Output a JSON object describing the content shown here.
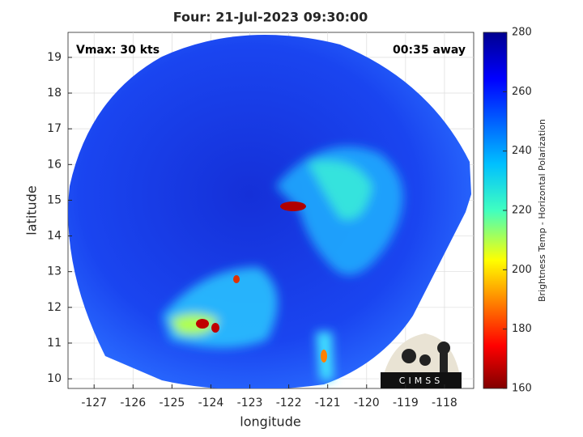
{
  "chart_data": {
    "type": "image",
    "title": "Four: 21-Jul-2023 09:30:00",
    "annotations": [
      "Vmax: 30 kts",
      "00:35 away"
    ],
    "x_label": "longitude",
    "y_label": "latitude",
    "xlim": [
      -127.67,
      -117.25
    ],
    "xticks": [
      -127,
      -126,
      -125,
      -124,
      -123,
      -122,
      -121,
      -120,
      -119,
      -118
    ],
    "ylim": [
      9.73,
      19.7
    ],
    "yticks": [
      10,
      11,
      12,
      13,
      14,
      15,
      16,
      17,
      18,
      19
    ],
    "grid": true,
    "colorbar": {
      "label": "Brightness Temp - Horizontal Polarization",
      "lim": [
        160,
        280
      ],
      "ticks": [
        160,
        180,
        200,
        220,
        240,
        260,
        280
      ]
    },
    "logo": "CIMSS"
  }
}
